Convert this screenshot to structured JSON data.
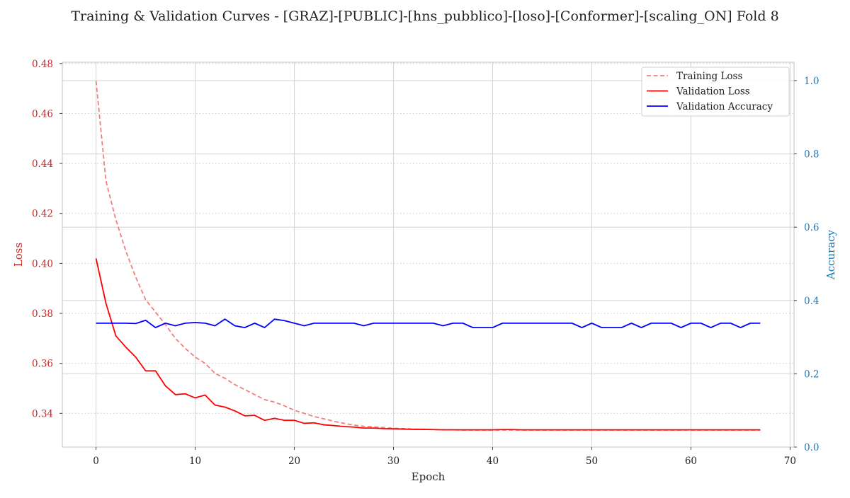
{
  "chart_data": {
    "type": "line",
    "title": "Training & Validation Curves - [GRAZ]-[PUBLIC]-[hns_pubblico]-[loso]-[Conformer]-[scaling_ON] Fold 8",
    "xlabel": "Epoch",
    "ylabel": "Loss",
    "y2label": "Accuracy",
    "xlim": [
      -3.4,
      70.4
    ],
    "ylim": [
      0.3265,
      0.4805
    ],
    "y2lim": [
      0,
      1.05
    ],
    "xticks": [
      0,
      10,
      20,
      30,
      40,
      50,
      60,
      70
    ],
    "yticks": [
      0.34,
      0.36,
      0.38,
      0.4,
      0.42,
      0.44,
      0.46,
      0.48
    ],
    "y2ticks": [
      0.0,
      0.2,
      0.4,
      0.6,
      0.8,
      1.0
    ],
    "legend_position": "top-right",
    "grid": true,
    "colors": {
      "loss_axis": "#c62828",
      "accuracy_axis": "#1f77b4",
      "training_loss": "#f08080",
      "validation_loss": "#ff0000",
      "validation_accuracy": "#0000ff"
    },
    "x": [
      0,
      1,
      2,
      3,
      4,
      5,
      6,
      7,
      8,
      9,
      10,
      11,
      12,
      13,
      14,
      15,
      16,
      17,
      18,
      19,
      20,
      21,
      22,
      23,
      24,
      25,
      26,
      27,
      28,
      29,
      30,
      31,
      32,
      33,
      34,
      35,
      36,
      37,
      38,
      39,
      40,
      41,
      42,
      43,
      44,
      45,
      46,
      47,
      48,
      49,
      50,
      51,
      52,
      53,
      54,
      55,
      56,
      57,
      58,
      59,
      60,
      61,
      62,
      63,
      64,
      65,
      66,
      67
    ],
    "series": [
      {
        "name": "Training Loss",
        "axis": "left",
        "style": "dashed",
        "values": [
          0.473,
          0.433,
          0.4175,
          0.405,
          0.3945,
          0.3855,
          0.3805,
          0.3755,
          0.37,
          0.366,
          0.3625,
          0.36,
          0.356,
          0.354,
          0.3515,
          0.3495,
          0.3475,
          0.3455,
          0.3445,
          0.343,
          0.3412,
          0.34,
          0.3387,
          0.3378,
          0.3368,
          0.336,
          0.3353,
          0.3348,
          0.3346,
          0.3343,
          0.334,
          0.3339,
          0.3337,
          0.3336,
          0.3335,
          0.3334,
          0.3334,
          0.3333,
          0.3333,
          0.3333,
          0.3333,
          0.3333,
          0.3333,
          0.3333,
          0.3333,
          0.3333,
          0.3333,
          0.3333,
          0.3333,
          0.3333,
          0.3333,
          0.3333,
          0.3333,
          0.3333,
          0.3333,
          0.3333,
          0.3333,
          0.3333,
          0.3333,
          0.3333,
          0.3333,
          0.3333,
          0.3333,
          0.3333,
          0.3333,
          0.3333,
          0.3333,
          0.3333
        ]
      },
      {
        "name": "Validation Loss",
        "axis": "left",
        "style": "solid",
        "values": [
          0.402,
          0.384,
          0.371,
          0.3665,
          0.3625,
          0.357,
          0.357,
          0.351,
          0.3475,
          0.3478,
          0.3462,
          0.3473,
          0.3433,
          0.3425,
          0.341,
          0.339,
          0.3392,
          0.3372,
          0.338,
          0.3372,
          0.3372,
          0.336,
          0.3362,
          0.3354,
          0.3351,
          0.3347,
          0.3345,
          0.3341,
          0.3341,
          0.3339,
          0.3338,
          0.3337,
          0.3336,
          0.3336,
          0.3335,
          0.3334,
          0.3334,
          0.3334,
          0.3334,
          0.3334,
          0.3334,
          0.3335,
          0.3335,
          0.3334,
          0.3334,
          0.3334,
          0.3334,
          0.3334,
          0.3334,
          0.3334,
          0.3334,
          0.3334,
          0.3334,
          0.3334,
          0.3334,
          0.3334,
          0.3334,
          0.3334,
          0.3334,
          0.3334,
          0.3334,
          0.3334,
          0.3334,
          0.3334,
          0.3334,
          0.3334,
          0.3334,
          0.3334
        ]
      },
      {
        "name": "Validation Accuracy",
        "axis": "right",
        "style": "solid",
        "values": [
          0.338,
          0.338,
          0.338,
          0.338,
          0.337,
          0.346,
          0.326,
          0.338,
          0.331,
          0.338,
          0.34,
          0.338,
          0.331,
          0.349,
          0.331,
          0.326,
          0.338,
          0.326,
          0.349,
          0.345,
          0.338,
          0.331,
          0.338,
          0.338,
          0.338,
          0.338,
          0.338,
          0.331,
          0.338,
          0.338,
          0.338,
          0.338,
          0.338,
          0.338,
          0.338,
          0.331,
          0.338,
          0.338,
          0.326,
          0.326,
          0.326,
          0.338,
          0.338,
          0.338,
          0.338,
          0.338,
          0.338,
          0.338,
          0.338,
          0.326,
          0.338,
          0.326,
          0.326,
          0.326,
          0.338,
          0.326,
          0.338,
          0.338,
          0.338,
          0.326,
          0.338,
          0.338,
          0.326,
          0.338,
          0.338,
          0.326,
          0.338,
          0.338
        ]
      }
    ]
  }
}
